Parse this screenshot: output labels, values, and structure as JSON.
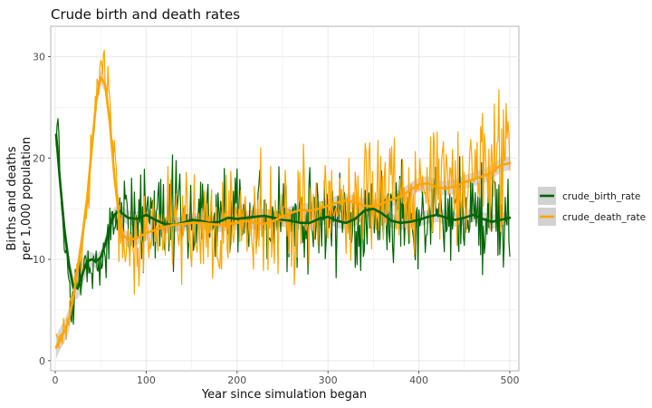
{
  "chart_data": {
    "type": "line",
    "title": "Crude birth and death rates",
    "xlabel": "Year since simulation began",
    "ylabel_lines": [
      "Births and deaths",
      "per 1,000 population"
    ],
    "xlim": [
      -5,
      510
    ],
    "ylim": [
      -1,
      33
    ],
    "x_ticks": [
      0,
      100,
      200,
      300,
      400,
      500
    ],
    "y_ticks": [
      0,
      10,
      20,
      30
    ],
    "grid": true,
    "legend_position": "right",
    "smooth_band_color": "#bdbdbd",
    "series": [
      {
        "name": "crude_birth_rate",
        "color": "#006400",
        "raw_anchors": [
          [
            1,
            22
          ],
          [
            3,
            24
          ],
          [
            6,
            17
          ],
          [
            10,
            11
          ],
          [
            15,
            7
          ],
          [
            20,
            5.5
          ],
          [
            25,
            7
          ],
          [
            30,
            9
          ],
          [
            35,
            10
          ],
          [
            40,
            10
          ],
          [
            45,
            9
          ],
          [
            50,
            9.5
          ],
          [
            55,
            11
          ],
          [
            60,
            12.5
          ],
          [
            65,
            14
          ],
          [
            70,
            14.5
          ],
          [
            100,
            14
          ],
          [
            150,
            14
          ],
          [
            200,
            14
          ],
          [
            250,
            14
          ],
          [
            300,
            14
          ],
          [
            350,
            14
          ],
          [
            400,
            14
          ],
          [
            450,
            14
          ],
          [
            500,
            14
          ]
        ],
        "smooth": [
          [
            1,
            22.3
          ],
          [
            5,
            18
          ],
          [
            10,
            13
          ],
          [
            15,
            9.5
          ],
          [
            20,
            7.2
          ],
          [
            25,
            7.2
          ],
          [
            30,
            8.6
          ],
          [
            35,
            9.8
          ],
          [
            40,
            10
          ],
          [
            45,
            9.8
          ],
          [
            50,
            10.2
          ],
          [
            55,
            11.5
          ],
          [
            60,
            13.2
          ],
          [
            65,
            14.4
          ],
          [
            70,
            14.8
          ],
          [
            80,
            14.1
          ],
          [
            90,
            14
          ],
          [
            100,
            14.4
          ],
          [
            110,
            13.9
          ],
          [
            120,
            13.5
          ],
          [
            130,
            13.4
          ],
          [
            140,
            13.6
          ],
          [
            150,
            13.9
          ],
          [
            160,
            13.8
          ],
          [
            170,
            13.6
          ],
          [
            180,
            13.7
          ],
          [
            190,
            14.1
          ],
          [
            200,
            14
          ],
          [
            210,
            14.1
          ],
          [
            220,
            14.2
          ],
          [
            230,
            14.3
          ],
          [
            240,
            14.1
          ],
          [
            250,
            13.9
          ],
          [
            260,
            13.8
          ],
          [
            270,
            13.6
          ],
          [
            280,
            13.6
          ],
          [
            290,
            14
          ],
          [
            300,
            14.2
          ],
          [
            310,
            13.8
          ],
          [
            320,
            13.6
          ],
          [
            330,
            14
          ],
          [
            340,
            14.8
          ],
          [
            350,
            15
          ],
          [
            360,
            14.5
          ],
          [
            370,
            13.8
          ],
          [
            380,
            13.6
          ],
          [
            390,
            13.7
          ],
          [
            400,
            13.9
          ],
          [
            410,
            14.2
          ],
          [
            420,
            14.4
          ],
          [
            430,
            14.1
          ],
          [
            440,
            13.9
          ],
          [
            450,
            14.1
          ],
          [
            460,
            14.4
          ],
          [
            470,
            14
          ],
          [
            480,
            13.7
          ],
          [
            490,
            13.9
          ],
          [
            500,
            14.1
          ]
        ]
      },
      {
        "name": "crude_death_rate",
        "color": "#FFA500",
        "raw_anchors": [
          [
            1,
            2
          ],
          [
            5,
            2.5
          ],
          [
            10,
            3
          ],
          [
            15,
            4
          ],
          [
            20,
            6.5
          ],
          [
            25,
            9
          ],
          [
            30,
            12
          ],
          [
            35,
            16
          ],
          [
            40,
            21
          ],
          [
            45,
            26
          ],
          [
            48,
            29
          ],
          [
            50,
            30
          ],
          [
            55,
            28.5
          ],
          [
            60,
            25
          ],
          [
            65,
            20
          ],
          [
            70,
            15
          ],
          [
            75,
            12
          ],
          [
            80,
            11
          ],
          [
            90,
            12
          ],
          [
            100,
            12.5
          ],
          [
            150,
            13.5
          ],
          [
            200,
            13.5
          ],
          [
            250,
            14
          ],
          [
            300,
            15
          ],
          [
            350,
            15.5
          ],
          [
            400,
            17
          ],
          [
            450,
            17.5
          ],
          [
            500,
            19.5
          ]
        ],
        "smooth": [
          [
            1,
            1.3
          ],
          [
            5,
            2.1
          ],
          [
            10,
            2.9
          ],
          [
            15,
            4
          ],
          [
            20,
            6.3
          ],
          [
            25,
            9.2
          ],
          [
            30,
            12.3
          ],
          [
            35,
            16
          ],
          [
            40,
            20.8
          ],
          [
            45,
            25.6
          ],
          [
            50,
            28
          ],
          [
            55,
            27.2
          ],
          [
            60,
            23.5
          ],
          [
            65,
            18.2
          ],
          [
            70,
            14.3
          ],
          [
            75,
            12.4
          ],
          [
            80,
            11.9
          ],
          [
            90,
            12.1
          ],
          [
            100,
            12.6
          ],
          [
            110,
            12.9
          ],
          [
            120,
            13.2
          ],
          [
            130,
            13.4
          ],
          [
            140,
            13.5
          ],
          [
            150,
            13.6
          ],
          [
            160,
            13.6
          ],
          [
            170,
            13.5
          ],
          [
            180,
            13.4
          ],
          [
            190,
            13.5
          ],
          [
            200,
            13.6
          ],
          [
            210,
            13.8
          ],
          [
            220,
            13.6
          ],
          [
            230,
            13.5
          ],
          [
            240,
            13.8
          ],
          [
            250,
            14.2
          ],
          [
            260,
            14.6
          ],
          [
            270,
            14.9
          ],
          [
            280,
            14.8
          ],
          [
            290,
            15
          ],
          [
            300,
            15.3
          ],
          [
            310,
            15.6
          ],
          [
            320,
            15.8
          ],
          [
            330,
            15.6
          ],
          [
            340,
            15.3
          ],
          [
            350,
            15.2
          ],
          [
            360,
            15.5
          ],
          [
            370,
            15.9
          ],
          [
            380,
            16.2
          ],
          [
            390,
            16.8
          ],
          [
            400,
            17.4
          ],
          [
            410,
            17.5
          ],
          [
            420,
            17.1
          ],
          [
            430,
            17
          ],
          [
            440,
            17.2
          ],
          [
            450,
            17.6
          ],
          [
            460,
            17.9
          ],
          [
            470,
            18.2
          ],
          [
            480,
            18.6
          ],
          [
            490,
            19.3
          ],
          [
            500,
            19.5
          ]
        ]
      }
    ]
  }
}
